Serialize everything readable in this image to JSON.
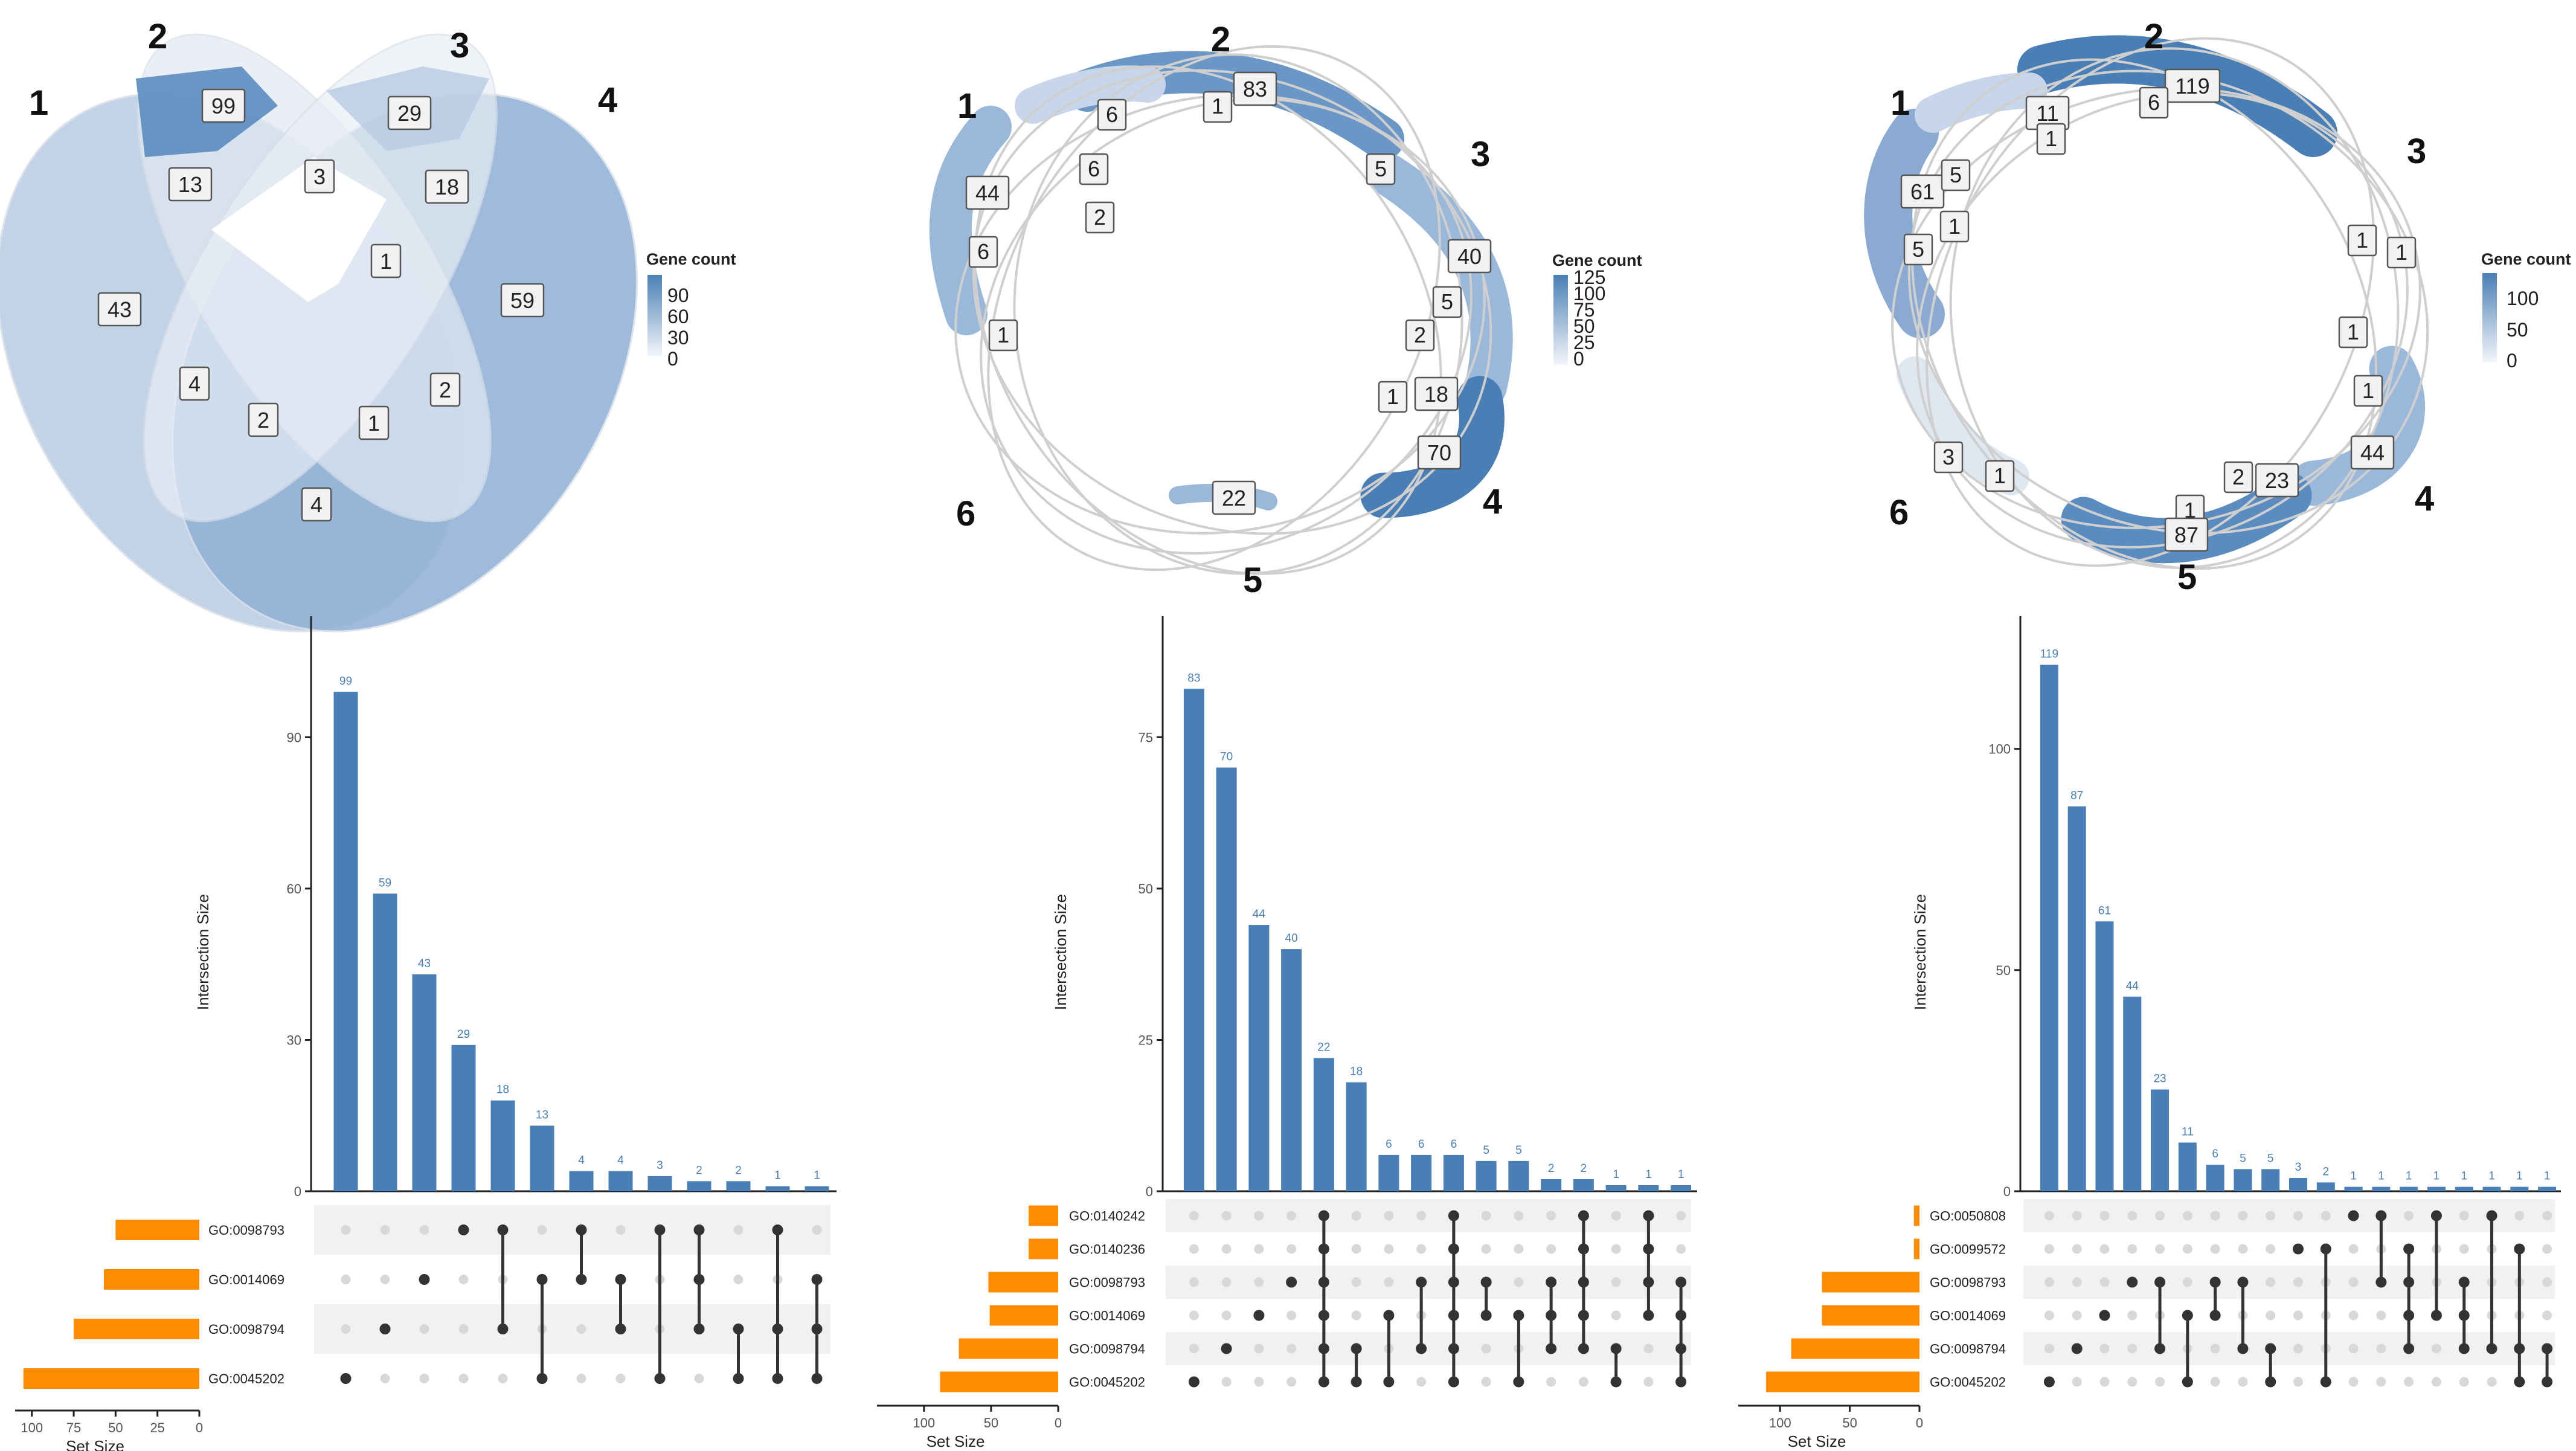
{
  "chart_data": [
    {
      "type": "venn",
      "panel": "top-left",
      "set_labels": [
        "1",
        "2",
        "3",
        "4"
      ],
      "legend": {
        "title": "Gene count",
        "ticks": [
          "90",
          "60",
          "30",
          "0"
        ],
        "max": 99
      },
      "regions": [
        {
          "sets": "1",
          "value": 43
        },
        {
          "sets": "2",
          "value": 99
        },
        {
          "sets": "3",
          "value": 29
        },
        {
          "sets": "4",
          "value": 59
        },
        {
          "sets": "1,2",
          "value": 13
        },
        {
          "sets": "2,3",
          "value": 3
        },
        {
          "sets": "3,4",
          "value": 18
        },
        {
          "sets": "1,2,3",
          "value": 0
        },
        {
          "sets": "2,3,4",
          "value": 1
        },
        {
          "sets": "1,3",
          "value": 4
        },
        {
          "sets": "2,4",
          "value": 2
        },
        {
          "sets": "1,2,3,4",
          "value": 0
        },
        {
          "sets": "1,3,4",
          "value": 2
        },
        {
          "sets": "1,2,4",
          "value": 1
        },
        {
          "sets": "1,4",
          "value": 4
        }
      ]
    },
    {
      "type": "venn",
      "panel": "top-center",
      "set_labels": [
        "1",
        "2",
        "3",
        "4",
        "5",
        "6"
      ],
      "legend": {
        "title": "Gene count",
        "ticks": [
          "125",
          "100",
          "75",
          "50",
          "25",
          "0"
        ],
        "max": 125
      },
      "region_labels": [
        "83",
        "1",
        "6",
        "6",
        "44",
        "2",
        "6",
        "5",
        "40",
        "5",
        "2",
        "1",
        "18",
        "70",
        "22",
        "1"
      ]
    },
    {
      "type": "venn",
      "panel": "top-right",
      "set_labels": [
        "1",
        "2",
        "3",
        "4",
        "5",
        "6"
      ],
      "legend": {
        "title": "Gene count",
        "ticks": [
          "100",
          "50",
          "0"
        ],
        "max": 119
      },
      "region_labels": [
        "119",
        "6",
        "11",
        "1",
        "61",
        "5",
        "1",
        "5",
        "1",
        "1",
        "1",
        "1",
        "44",
        "2",
        "23",
        "1",
        "87",
        "3",
        "1"
      ]
    },
    {
      "type": "upset",
      "panel": "bottom-left",
      "ylabel": "Intersection Size",
      "xlabel": "Set Size",
      "yticks": [
        0,
        30,
        60,
        90
      ],
      "ymax": 114,
      "values": [
        99,
        59,
        43,
        29,
        18,
        13,
        4,
        4,
        3,
        2,
        2,
        1,
        1
      ],
      "sets": [
        {
          "name": "GO:0098793",
          "size": 50
        },
        {
          "name": "GO:0014069",
          "size": 57
        },
        {
          "name": "GO:0098794",
          "size": 75
        },
        {
          "name": "GO:0045202",
          "size": 105
        }
      ],
      "set_axis": {
        "ticks": [
          100,
          75,
          50,
          25,
          0
        ],
        "max": 110
      },
      "matrix": [
        [
          3
        ],
        [
          2
        ],
        [
          1
        ],
        [
          0
        ],
        [
          0,
          2
        ],
        [
          1,
          3
        ],
        [
          0,
          1
        ],
        [
          1,
          2
        ],
        [
          0,
          3
        ],
        [
          0,
          1,
          2
        ],
        [
          2,
          3
        ],
        [
          0,
          2,
          3
        ],
        [
          1,
          2,
          3
        ]
      ]
    },
    {
      "type": "upset",
      "panel": "bottom-center",
      "ylabel": "Intersection Size",
      "xlabel": "Set Size",
      "yticks": [
        0,
        25,
        50,
        75
      ],
      "ymax": 95,
      "values": [
        83,
        70,
        44,
        40,
        22,
        18,
        6,
        6,
        6,
        5,
        5,
        2,
        2,
        1,
        1,
        1
      ],
      "sets": [
        {
          "name": "GO:0140242",
          "size": 22
        },
        {
          "name": "GO:0140236",
          "size": 22
        },
        {
          "name": "GO:0098793",
          "size": 52
        },
        {
          "name": "GO:0014069",
          "size": 51
        },
        {
          "name": "GO:0098794",
          "size": 74
        },
        {
          "name": "GO:0045202",
          "size": 88
        }
      ],
      "set_axis": {
        "ticks": [
          100,
          50,
          0
        ],
        "max": 135
      },
      "matrix": [
        [
          5
        ],
        [
          4
        ],
        [
          3
        ],
        [
          2
        ],
        [
          0,
          1,
          2,
          3,
          4,
          5
        ],
        [
          4,
          5
        ],
        [
          3,
          5
        ],
        [
          2,
          4
        ],
        [
          0,
          1,
          2,
          3,
          4,
          5
        ],
        [
          2,
          3
        ],
        [
          3,
          5
        ],
        [
          2,
          3,
          4
        ],
        [
          0,
          1,
          2,
          3,
          4
        ],
        [
          4,
          5
        ],
        [
          0,
          1,
          2,
          3
        ],
        [
          2,
          3,
          4,
          5
        ]
      ]
    },
    {
      "type": "upset",
      "panel": "bottom-right",
      "ylabel": "Intersection Size",
      "xlabel": "Set Size",
      "yticks": [
        0,
        50,
        100
      ],
      "ymax": 130,
      "values": [
        119,
        87,
        61,
        44,
        23,
        11,
        6,
        5,
        5,
        3,
        2,
        1,
        1,
        1,
        1,
        1,
        1,
        1,
        1
      ],
      "sets": [
        {
          "name": "GO:0050808",
          "size": 4
        },
        {
          "name": "GO:0099572",
          "size": 4
        },
        {
          "name": "GO:0098793",
          "size": 70
        },
        {
          "name": "GO:0014069",
          "size": 70
        },
        {
          "name": "GO:0098794",
          "size": 92
        },
        {
          "name": "GO:0045202",
          "size": 110
        }
      ],
      "set_axis": {
        "ticks": [
          100,
          50,
          0
        ],
        "max": 130
      },
      "matrix": [
        [
          5
        ],
        [
          4
        ],
        [
          3
        ],
        [
          2
        ],
        [
          2,
          4
        ],
        [
          3,
          5
        ],
        [
          2,
          3
        ],
        [
          2,
          4
        ],
        [
          4,
          5
        ],
        [
          1
        ],
        [
          1,
          5
        ],
        [
          0
        ],
        [
          0,
          2
        ],
        [
          1,
          2,
          3,
          4
        ],
        [
          0,
          3
        ],
        [
          2,
          3,
          4
        ],
        [
          0,
          4
        ],
        [
          1,
          4,
          5
        ],
        [
          4,
          5
        ]
      ]
    }
  ]
}
